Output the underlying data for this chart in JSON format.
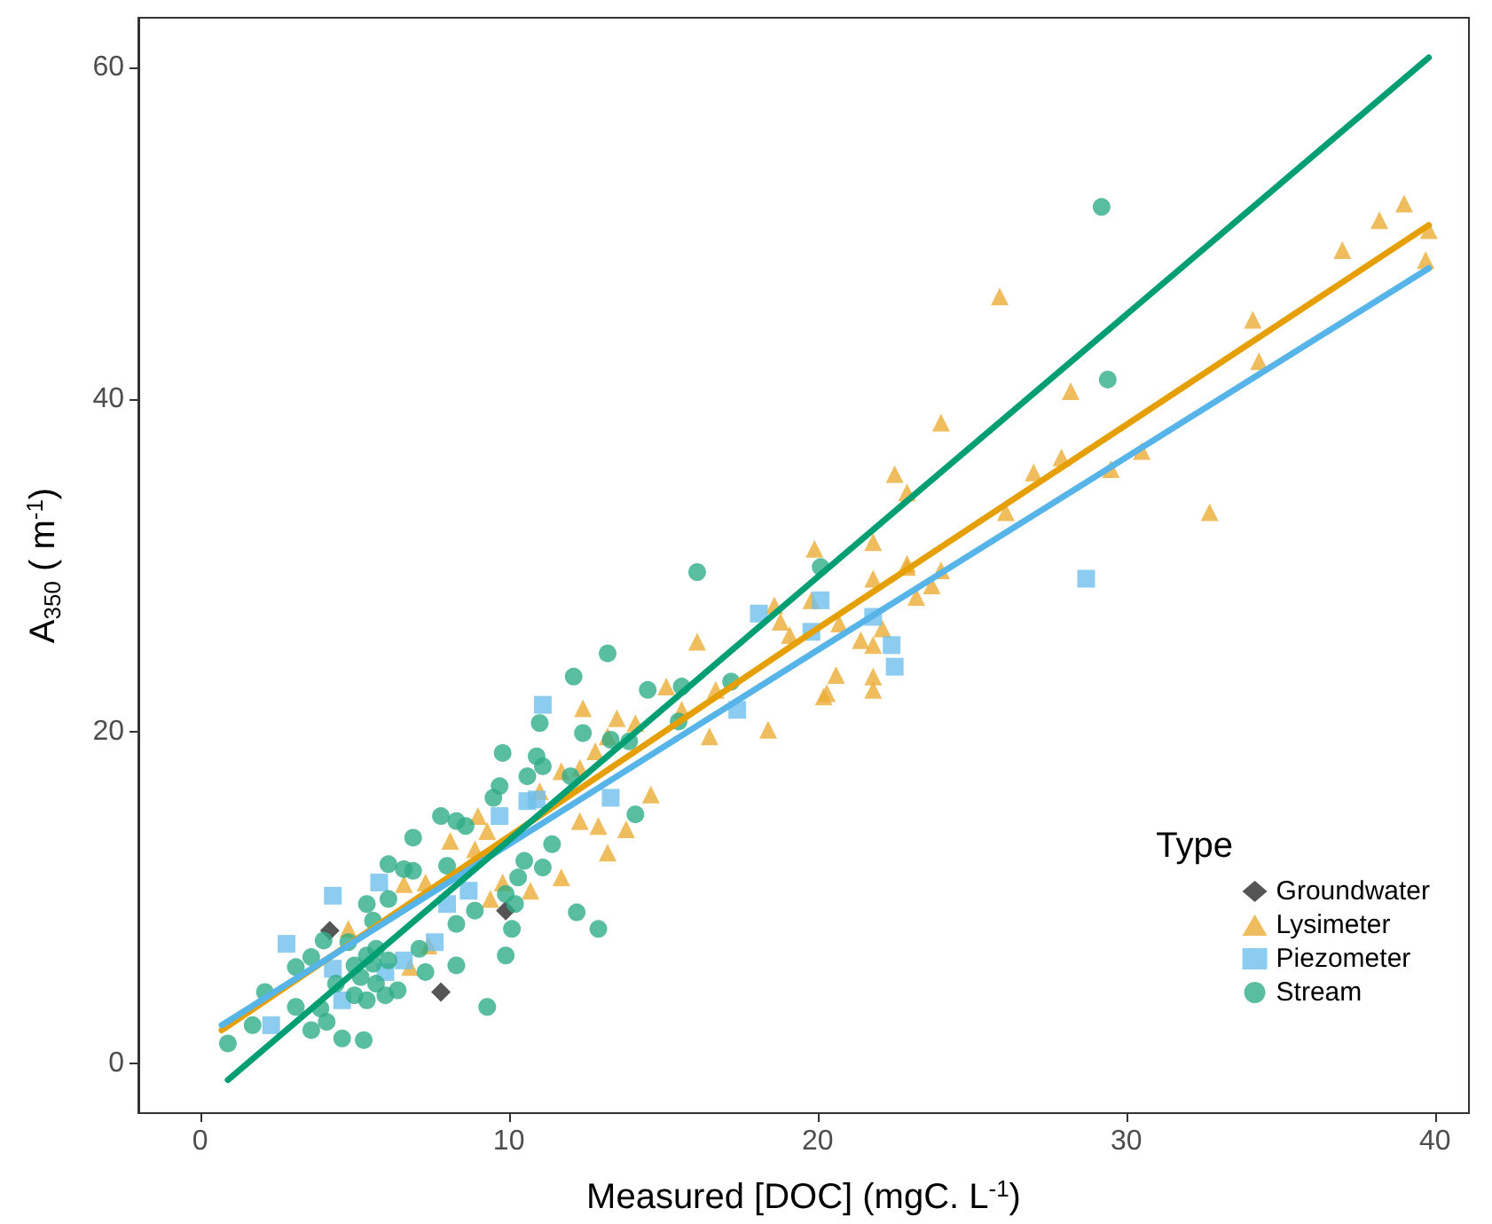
{
  "chart_data": {
    "type": "scatter",
    "xlabel": "Measured [DOC] (mgC. L$^{-1}$)",
    "ylabel": "A$_{350}$ ( m$^{-1}$)",
    "legend_title": "Type",
    "legend": "bottom right",
    "grid": false,
    "xlim": [
      -2,
      41.1
    ],
    "xticks": [
      0,
      10,
      20,
      30,
      40
    ],
    "ylim": [
      -3,
      63
    ],
    "yticks": [
      0,
      20,
      40,
      60
    ],
    "series": [
      {
        "name": "Groundwater",
        "color": "#2b2b2b",
        "marker": "diamond",
        "x": [
          4.2,
          9.9,
          7.8
        ],
        "values": [
          8.0,
          9.2,
          4.3
        ]
      },
      {
        "name": "Lysimeter",
        "color": "#ebac35",
        "marker": "triangle",
        "x": [
          25.9,
          24.0,
          28.2,
          37.0,
          38.2,
          39.0,
          39.8,
          39.7,
          34.1,
          34.3,
          32.7,
          30.5,
          29.5,
          27.9,
          27.0,
          26.1,
          22.5,
          22.9,
          22.9,
          24.0,
          23.7,
          19.9,
          21.8,
          21.8,
          22.9,
          23.2,
          18.6,
          18.8,
          19.1,
          19.8,
          20.7,
          22.1,
          21.8,
          21.4,
          20.6,
          20.3,
          20.2,
          21.8,
          21.8,
          16.1,
          18.4,
          16.5,
          16.7,
          15.1,
          15.6,
          12.4,
          13.5,
          14.1,
          13.2,
          12.8,
          11.7,
          12.3,
          14.6,
          12.3,
          12.9,
          13.8,
          13.2,
          11.0,
          9.0,
          9.3,
          8.1,
          8.9,
          7.3,
          6.6,
          9.8,
          10.7,
          11.7,
          9.4,
          4.8,
          7.4,
          6.8
        ],
        "values": [
          46.2,
          38.6,
          40.5,
          49.0,
          50.8,
          51.8,
          50.2,
          48.4,
          44.8,
          42.3,
          33.2,
          36.9,
          35.8,
          36.5,
          35.6,
          33.2,
          35.5,
          34.4,
          30.1,
          29.7,
          28.8,
          31.0,
          31.4,
          29.2,
          29.9,
          28.1,
          27.6,
          26.6,
          25.8,
          27.9,
          26.5,
          26.2,
          25.2,
          25.5,
          23.4,
          22.3,
          22.1,
          23.3,
          22.5,
          25.4,
          20.1,
          19.7,
          22.5,
          22.7,
          21.3,
          21.4,
          20.8,
          20.5,
          19.7,
          18.8,
          17.6,
          17.8,
          16.2,
          14.6,
          14.3,
          14.1,
          12.7,
          16.4,
          14.9,
          14.0,
          13.4,
          12.9,
          10.9,
          10.8,
          10.9,
          10.4,
          11.2,
          9.9,
          8.1,
          7.1,
          5.8
        ]
      },
      {
        "name": "Piezometer",
        "color": "#6fbfec",
        "marker": "square",
        "x": [
          28.7,
          18.1,
          20.1,
          19.8,
          21.8,
          22.4,
          22.5,
          11.1,
          17.4,
          13.3,
          5.8,
          4.3,
          2.8,
          10.6,
          10.9,
          9.7,
          8.0,
          8.7,
          7.6,
          2.3,
          4.6,
          6.0,
          6.6,
          4.3
        ],
        "values": [
          29.2,
          27.1,
          27.9,
          26.0,
          26.9,
          25.2,
          23.9,
          21.6,
          21.3,
          16.0,
          10.9,
          10.1,
          7.2,
          15.8,
          15.9,
          14.9,
          9.6,
          10.4,
          7.3,
          2.3,
          3.8,
          5.5,
          6.2,
          5.7
        ]
      },
      {
        "name": "Stream",
        "color": "#30ad87",
        "marker": "circle",
        "x": [
          29.2,
          29.4,
          16.1,
          20.1,
          13.2,
          12.1,
          14.5,
          15.6,
          17.2,
          11.0,
          12.4,
          15.5,
          13.3,
          13.9,
          10.9,
          11.1,
          12.0,
          14.1,
          11.4,
          9.8,
          10.6,
          9.7,
          9.5,
          6.9,
          7.8,
          8.3,
          8.6,
          6.1,
          6.6,
          6.9,
          8.0,
          10.5,
          11.1,
          10.3,
          9.9,
          10.2,
          8.9,
          8.3,
          10.1,
          5.4,
          5.6,
          6.1,
          4.0,
          3.6,
          3.1,
          4.8,
          5.4,
          5.7,
          5.0,
          5.6,
          6.1,
          5.2,
          5.7,
          5.0,
          5.4,
          6.0,
          6.4,
          7.1,
          7.3,
          8.3,
          9.9,
          9.3,
          12.2,
          12.9,
          3.9,
          4.1,
          4.6,
          5.3,
          3.6,
          2.1,
          1.7,
          0.9,
          3.1,
          4.4
        ],
        "values": [
          51.6,
          41.2,
          29.6,
          29.9,
          24.7,
          23.3,
          22.5,
          22.7,
          23.0,
          20.5,
          19.9,
          20.6,
          19.5,
          19.4,
          18.5,
          17.9,
          17.3,
          15.0,
          13.2,
          18.7,
          17.3,
          16.7,
          16.0,
          13.6,
          14.9,
          14.6,
          14.3,
          12.0,
          11.7,
          11.6,
          11.9,
          12.2,
          11.8,
          11.2,
          10.2,
          9.6,
          9.2,
          8.4,
          8.1,
          9.6,
          8.6,
          9.9,
          7.4,
          6.4,
          5.8,
          7.3,
          6.5,
          6.9,
          5.9,
          6.0,
          6.2,
          5.2,
          4.8,
          4.1,
          3.8,
          4.1,
          4.4,
          6.9,
          5.5,
          5.9,
          6.5,
          3.4,
          9.1,
          8.1,
          3.3,
          2.5,
          1.5,
          1.4,
          2.0,
          4.3,
          2.3,
          1.2,
          3.4,
          4.8
        ]
      },
      {
        "type": "line",
        "color": "#e69f00",
        "x": [
          0.7,
          20,
          39.8
        ],
        "values": [
          2.0,
          26.2,
          50.5
        ]
      },
      {
        "type": "line",
        "color": "#56b4e9",
        "x": [
          0.7,
          20,
          39.8
        ],
        "values": [
          2.3,
          24.9,
          47.9
        ]
      },
      {
        "type": "line",
        "color": "#009e73",
        "x": [
          0.9,
          20,
          39.8
        ],
        "values": [
          -1,
          29.3,
          60.6
        ]
      }
    ]
  }
}
